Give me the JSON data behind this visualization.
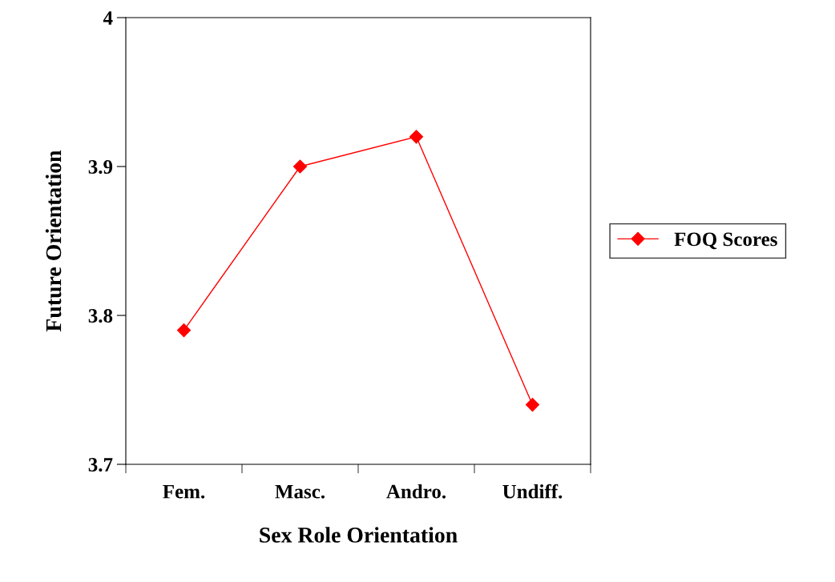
{
  "chart_data": {
    "type": "line",
    "xlabel": "Sex Role Orientation",
    "ylabel": "Future Orientation",
    "categories": [
      "Fem.",
      "Masc.",
      "Andro.",
      "Undiff."
    ],
    "series": [
      {
        "name": "FOQ Scores",
        "color": "#ff0000",
        "values": [
          3.79,
          3.9,
          3.92,
          3.74
        ]
      }
    ],
    "ylim": [
      3.7,
      4
    ],
    "yticks": [
      3.7,
      3.8,
      3.9,
      4
    ],
    "grid": false,
    "legend": "right",
    "marker": "diamond",
    "line_style": "solid"
  }
}
